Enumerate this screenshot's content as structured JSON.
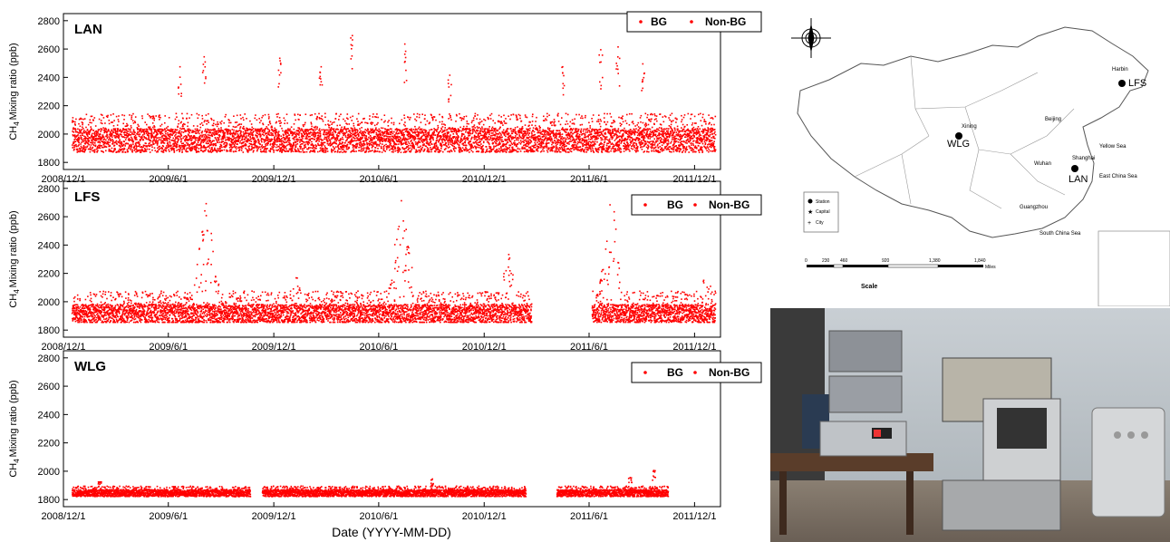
{
  "chart_data": [
    {
      "type": "scatter",
      "station": "LAN",
      "ylabel": "CH4 Mixing ratio (ppb)",
      "ylabel_main": "CH",
      "ylabel_sub": "4",
      "ylabel_rest": "Mixing ratio (ppb)",
      "ylim": [
        1750,
        2850
      ],
      "yticks": [
        1800,
        2000,
        2200,
        2400,
        2600,
        2800
      ],
      "xticks": [
        "2008/12/1",
        "2009/6/1",
        "2009/12/1",
        "2010/6/1",
        "2010/12/1",
        "2011/6/1",
        "2011/12/1"
      ],
      "xlim": [
        "2008-12-01",
        "2012-01-15"
      ],
      "legend": [
        "BG",
        "Non-BG"
      ],
      "legend_position": "top-right",
      "series_color": "#ff0000",
      "data_ranges": [
        [
          "2008-12-15",
          "2012-01-05"
        ]
      ],
      "baseline": 1960,
      "typical_band": [
        1870,
        2150
      ],
      "spikes": [
        {
          "x": "2009-06-20",
          "y": 2480
        },
        {
          "x": "2009-08-01",
          "y": 2550
        },
        {
          "x": "2009-12-10",
          "y": 2540
        },
        {
          "x": "2010-02-20",
          "y": 2480
        },
        {
          "x": "2010-04-15",
          "y": 2700
        },
        {
          "x": "2010-07-15",
          "y": 2640
        },
        {
          "x": "2010-10-01",
          "y": 2420
        },
        {
          "x": "2011-04-15",
          "y": 2480
        },
        {
          "x": "2011-06-20",
          "y": 2600
        },
        {
          "x": "2011-07-20",
          "y": 2620
        },
        {
          "x": "2011-09-01",
          "y": 2500
        }
      ]
    },
    {
      "type": "scatter",
      "station": "LFS",
      "ylabel": "CH4 Mixing ratio (ppb)",
      "ylabel_main": "CH",
      "ylabel_sub": "4",
      "ylabel_rest": "Mixing ratio (ppb)",
      "ylim": [
        1750,
        2850
      ],
      "yticks": [
        1800,
        2000,
        2200,
        2400,
        2600,
        2800
      ],
      "xticks": [
        "2008/12/1",
        "2009/6/1",
        "2009/12/1",
        "2010/6/1",
        "2010/12/1",
        "2011/6/1",
        "2011/12/1"
      ],
      "xlim": [
        "2008-12-01",
        "2012-01-15"
      ],
      "legend": [
        "BG",
        "Non-BG"
      ],
      "legend_position": "top-right",
      "series_color": "#ff0000",
      "data_ranges": [
        [
          "2008-12-15",
          "2011-02-20"
        ],
        [
          "2011-06-05",
          "2012-01-05"
        ]
      ],
      "baseline": 1920,
      "typical_band": [
        1860,
        2080
      ],
      "summer_peaks": [
        {
          "x": "2009-08-05",
          "y": 2780
        },
        {
          "x": "2010-07-10",
          "y": 2850
        },
        {
          "x": "2011-07-10",
          "y": 2840
        }
      ],
      "winter_peaks": [
        {
          "x": "2010-01-10",
          "y": 2220
        },
        {
          "x": "2011-01-10",
          "y": 2440
        },
        {
          "x": "2011-12-20",
          "y": 2260
        }
      ]
    },
    {
      "type": "scatter",
      "station": "WLG",
      "xlabel": "Date (YYYY-MM-DD)",
      "ylabel": "CH4 Mixing ratio (ppb)",
      "ylabel_main": "CH",
      "ylabel_sub": "4",
      "ylabel_rest": "Mixing ratio (ppb)",
      "ylim": [
        1750,
        2850
      ],
      "yticks": [
        1800,
        2000,
        2200,
        2400,
        2600,
        2800
      ],
      "xticks": [
        "2008/12/1",
        "2009/6/1",
        "2009/12/1",
        "2010/6/1",
        "2010/12/1",
        "2011/6/1",
        "2011/12/1"
      ],
      "xlim": [
        "2008-12-01",
        "2012-01-15"
      ],
      "legend": [
        "BG",
        "Non-BG"
      ],
      "legend_position": "top-right",
      "series_color": "#ff0000",
      "data_ranges": [
        [
          "2008-12-15",
          "2009-10-20"
        ],
        [
          "2009-11-10",
          "2011-02-10"
        ],
        [
          "2011-04-05",
          "2011-10-15"
        ]
      ],
      "baseline": 1850,
      "typical_band": [
        1820,
        1900
      ],
      "spikes": [
        {
          "x": "2009-02-01",
          "y": 1930
        },
        {
          "x": "2010-09-01",
          "y": 1950
        },
        {
          "x": "2011-08-10",
          "y": 1960
        },
        {
          "x": "2011-09-20",
          "y": 2010
        }
      ]
    }
  ],
  "map": {
    "stations": [
      "LFS",
      "WLG",
      "LAN"
    ],
    "cities": [
      "Harbin",
      "Beijing",
      "Xining",
      "Wuhan",
      "Shanghai",
      "Guangzhou"
    ],
    "seas": [
      "Yellow Sea",
      "East China Sea",
      "South China Sea"
    ],
    "legend": [
      "Station",
      "Capital",
      "City"
    ],
    "scale_ticks": [
      "0",
      "230",
      "460",
      "920",
      "1,380",
      "1,840"
    ],
    "scale_unit": "Miles",
    "scale_label": "Scale"
  }
}
